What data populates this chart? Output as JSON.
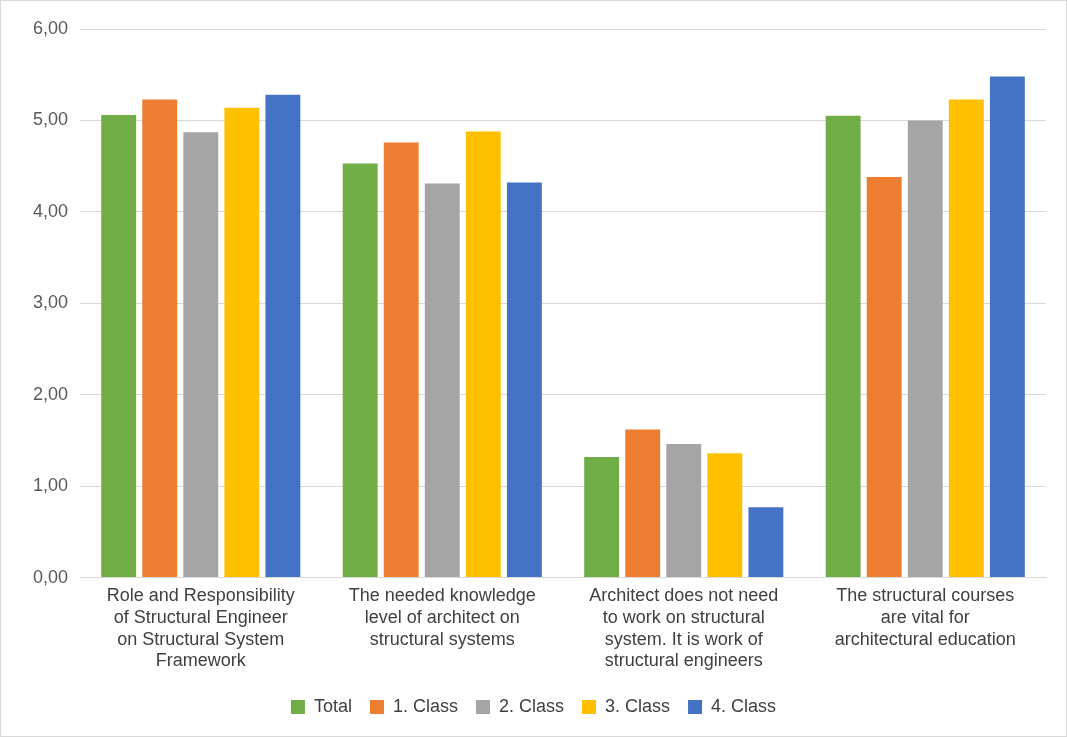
{
  "chart_data": {
    "type": "bar",
    "categories": [
      "Role and Responsibility of Structural Engineer on Structural System Framework",
      "The needed knowledge level of architect on structural systems",
      "Architect does not need to work on structural system. It is work of structural engineers",
      "The structural courses are vital for architectural education"
    ],
    "series": [
      {
        "name": "Total",
        "color": "#70ad47",
        "values": [
          5.06,
          4.53,
          1.32,
          5.05
        ]
      },
      {
        "name": "1. Class",
        "color": "#ed7d31",
        "values": [
          5.23,
          4.76,
          1.62,
          4.38
        ]
      },
      {
        "name": "2. Class",
        "color": "#a5a5a5",
        "values": [
          4.87,
          4.31,
          1.46,
          5.0
        ]
      },
      {
        "name": "3. Class",
        "color": "#ffc000",
        "values": [
          5.14,
          4.88,
          1.36,
          5.23
        ]
      },
      {
        "name": "4. Class",
        "color": "#4472c4",
        "values": [
          5.28,
          4.32,
          0.77,
          5.48
        ]
      }
    ],
    "ylim": [
      0,
      6
    ],
    "yticks": [
      {
        "value": 0,
        "label": "0,00"
      },
      {
        "value": 1,
        "label": "1,00"
      },
      {
        "value": 2,
        "label": "2,00"
      },
      {
        "value": 3,
        "label": "3,00"
      },
      {
        "value": 4,
        "label": "4,00"
      },
      {
        "value": 5,
        "label": "5,00"
      },
      {
        "value": 6,
        "label": "6,00"
      }
    ],
    "grid": "y",
    "legend": "bottom"
  }
}
